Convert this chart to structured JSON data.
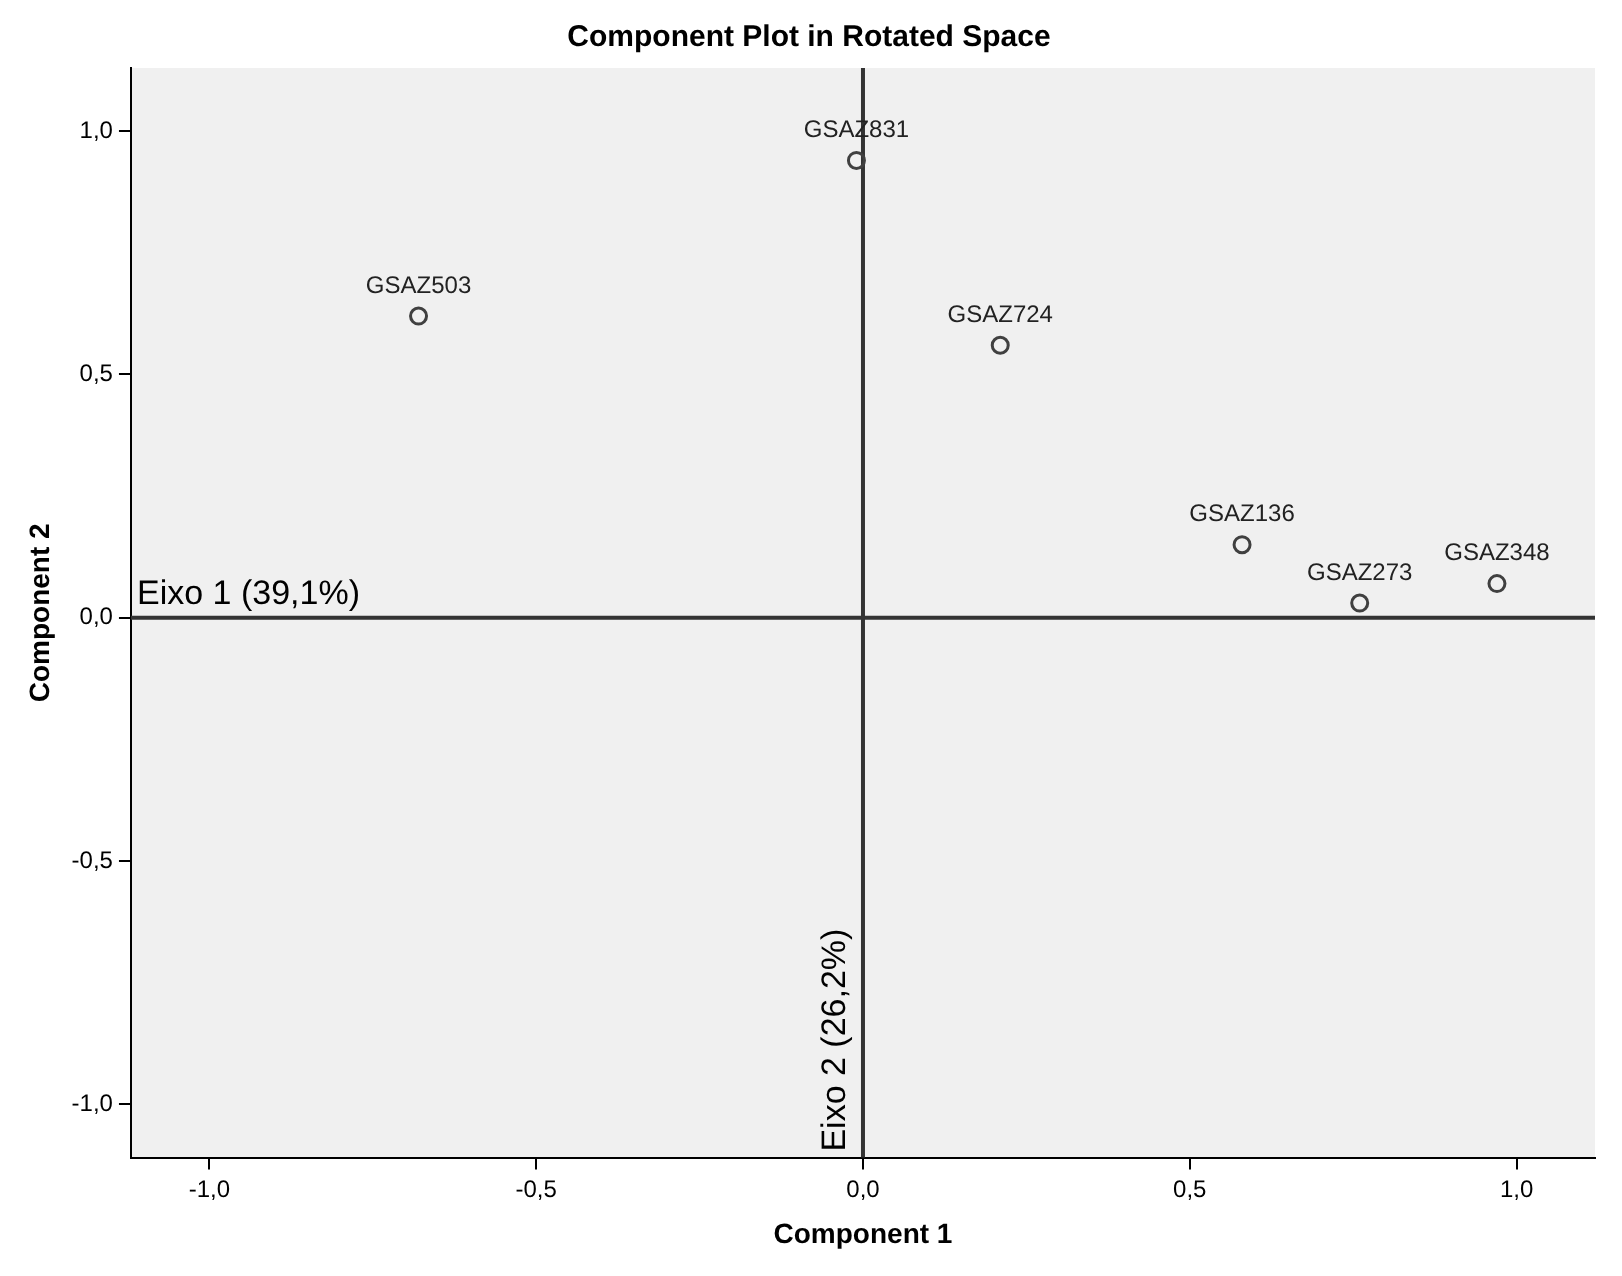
{
  "chart_data": {
    "type": "scatter",
    "title": "Component Plot in Rotated Space",
    "xlabel": "Component 1",
    "ylabel": "Component 2",
    "x": [
      -0.68,
      -0.01,
      0.21,
      0.58,
      0.76,
      0.97
    ],
    "series": [
      {
        "color": "#404040",
        "values": [
          0.62,
          0.94,
          0.56,
          0.15,
          0.03,
          0.07
        ]
      }
    ],
    "annotations": [
      {
        "text": "GSAZ503",
        "x": -0.68,
        "y": 0.62
      },
      {
        "text": "GSAZ831",
        "x": -0.01,
        "y": 0.94
      },
      {
        "text": "GSAZ724",
        "x": 0.21,
        "y": 0.56
      },
      {
        "text": "GSAZ136",
        "x": 0.58,
        "y": 0.15
      },
      {
        "text": "GSAZ273",
        "x": 0.76,
        "y": 0.03
      },
      {
        "text": "GSAZ348",
        "x": 0.97,
        "y": 0.07
      }
    ],
    "ref_lines": [
      {
        "axis": "y",
        "value": 0,
        "label": "Eixo 1 (39,1%)",
        "color": "#333333"
      },
      {
        "axis": "x",
        "value": 0,
        "label": "Eixo 2 (26,2%)",
        "color": "#333333"
      }
    ],
    "xlim": [
      -1.12,
      1.12
    ],
    "ylim": [
      -1.11,
      1.13
    ],
    "xticks": [
      {
        "value": -1,
        "label": "-1,0"
      },
      {
        "value": -0.5,
        "label": "-0,5"
      },
      {
        "value": 0,
        "label": "0,0"
      },
      {
        "value": 0.5,
        "label": "0,5"
      },
      {
        "value": 1,
        "label": "1,0"
      }
    ],
    "yticks": [
      {
        "value": -1,
        "label": "-1,0"
      },
      {
        "value": -0.5,
        "label": "-0,5"
      },
      {
        "value": 0,
        "label": "0,0"
      },
      {
        "value": 0.5,
        "label": "0,5"
      },
      {
        "value": 1,
        "label": "1,0"
      }
    ],
    "grid": false,
    "legend": false,
    "marker": "circle"
  }
}
